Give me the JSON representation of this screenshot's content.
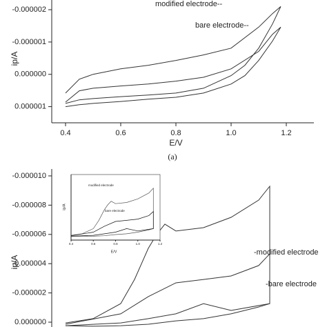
{
  "chart_data": [
    {
      "type": "line",
      "caption": "(a)",
      "xlabel": "E/V",
      "ylabel": "ip/A",
      "annotations": [
        "modified electrode--",
        "bare electrode--"
      ],
      "xlim": [
        0.35,
        1.3
      ],
      "xticks": [
        0.4,
        0.6,
        0.8,
        {
          "value": 1,
          "label": "1.0"
        },
        1.2
      ],
      "ylim": [
        1.5e-06,
        -2.3e-06
      ],
      "yticks": [
        -2e-06,
        -1e-06,
        {
          "value": 0,
          "label": "0.000000"
        },
        1e-06
      ],
      "series": [
        {
          "name": "modified electrode",
          "color": "#333333",
          "x": [
            0.4,
            0.45,
            0.5,
            0.6,
            0.7,
            0.8,
            0.9,
            1.0,
            1.05,
            1.1,
            1.15,
            1.18,
            1.15,
            1.1,
            1.0,
            0.9,
            0.8,
            0.7,
            0.6,
            0.5,
            0.45,
            0.4
          ],
          "values": [
            9e-07,
            7.9e-07,
            7.5e-07,
            6.9e-07,
            6.4e-07,
            5.8e-07,
            4.3e-07,
            4e-08,
            -2.8e-07,
            -8.1e-07,
            -1.56e-06,
            -2.1e-06,
            -1.88e-06,
            -1.46e-06,
            -8.1e-07,
            -6e-07,
            -4.3e-07,
            -2.8e-07,
            -1.7e-07,
            0,
            1.5e-07,
            5.8e-07
          ]
        },
        {
          "name": "bare electrode",
          "color": "#333333",
          "x": [
            0.4,
            0.45,
            0.5,
            0.6,
            0.7,
            0.8,
            0.9,
            1.0,
            1.05,
            1.1,
            1.15,
            1.18,
            1.15,
            1.1,
            1.0,
            0.9,
            0.8,
            0.7,
            0.6,
            0.5,
            0.45,
            0.4
          ],
          "values": [
            1e-06,
            9.4e-07,
            9e-07,
            8.4e-07,
            7.7e-07,
            7.1e-07,
            5.8e-07,
            3e-07,
            4e-08,
            -4.3e-07,
            -1.03e-06,
            -1.46e-06,
            -1.24e-06,
            -7.1e-07,
            -1.7e-07,
            9e-08,
            2.1e-07,
            3e-07,
            3.6e-07,
            4.3e-07,
            5.1e-07,
            8.6e-07
          ]
        }
      ]
    },
    {
      "type": "line",
      "ylabel": "ip/A",
      "annotations": [
        "-modified electrode",
        "-bare electrode"
      ],
      "xlim": [
        0.35,
        1.3
      ],
      "ylim": [
        3.3e-07,
        -1.047e-05
      ],
      "yticks": [
        {
          "value": -1e-05,
          "label": "-0.000010"
        },
        -8e-06,
        -6e-06,
        -4e-06,
        -2e-06,
        {
          "value": 0,
          "label": "0.000000"
        }
      ],
      "series": [
        {
          "name": "modified electrode",
          "color": "#333333",
          "x": [
            0.4,
            0.5,
            0.6,
            0.65,
            0.7,
            0.73,
            0.76,
            0.8,
            0.9,
            1.0,
            1.1,
            1.14,
            1.14,
            1.1,
            1.0,
            0.9,
            0.8,
            0.7,
            0.6,
            0.5,
            0.4
          ],
          "values": [
            5e-08,
            -2.4e-07,
            -1.27e-06,
            -2.92e-06,
            -5.05e-06,
            -5.99e-06,
            -6.7e-06,
            -6.23e-06,
            -6.46e-06,
            -7.17e-06,
            -8.35e-06,
            -9.29e-06,
            -1.27e-06,
            -1.04e-06,
            -5.7e-07,
            -2.4e-07,
            -9e-08,
            1.4e-07,
            2.4e-07,
            2.8e-07,
            2.4e-07
          ]
        },
        {
          "name": "bare electrode",
          "color": "#333333",
          "x": [
            0.4,
            0.6,
            0.7,
            0.8,
            0.9,
            1.0,
            1.1,
            1.14,
            1.14,
            1.0,
            0.9,
            0.8,
            0.7,
            0.6,
            0.4
          ],
          "values": [
            1.4e-07,
            -5.7e-07,
            -1.75e-06,
            -2.69e-06,
            -2.92e-06,
            -3.16e-06,
            -3.87e-06,
            -4.67e-06,
            -1.27e-06,
            -8e-07,
            -1.27e-06,
            -5.7e-07,
            -2.4e-07,
            5e-08,
            2.4e-07
          ]
        }
      ]
    },
    {
      "type": "line",
      "xlabel": "E/V",
      "ylabel": "ip/A",
      "annotations": [
        "modified electrode",
        "bare electrode"
      ],
      "xlim": [
        0.4,
        1.2
      ],
      "xticks": [
        0.4,
        0.6,
        0.8,
        {
          "value": 1,
          "label": "1.0"
        },
        1.2
      ],
      "ylim": [
        1e-06,
        -1.2e-05
      ],
      "series": [
        {
          "name": "modified electrode",
          "color": "#555555",
          "x": [
            0.4,
            0.5,
            0.6,
            0.65,
            0.7,
            0.73,
            0.76,
            0.8,
            0.9,
            1.0,
            1.1,
            1.14,
            1.14,
            1.1,
            1.0,
            0.9,
            0.8,
            0.7,
            0.6,
            0.5,
            0.4
          ],
          "values": [
            5e-08,
            -2.4e-07,
            -1.27e-06,
            -2.92e-06,
            -5.05e-06,
            -5.99e-06,
            -6.7e-06,
            -6.23e-06,
            -6.46e-06,
            -7.17e-06,
            -8.35e-06,
            -9.29e-06,
            -1.27e-06,
            -1.04e-06,
            -5.7e-07,
            -2.4e-07,
            -9e-08,
            1.4e-07,
            2.4e-07,
            2.8e-07,
            2.4e-07
          ]
        },
        {
          "name": "bare electrode",
          "color": "#111111",
          "x": [
            0.4,
            0.6,
            0.7,
            0.8,
            0.9,
            1.0,
            1.1,
            1.14,
            1.14,
            1.0,
            0.9,
            0.8,
            0.7,
            0.6,
            0.4
          ],
          "values": [
            1.4e-07,
            -5.7e-07,
            -1.75e-06,
            -2.69e-06,
            -2.92e-06,
            -3.16e-06,
            -3.87e-06,
            -4.67e-06,
            -1.27e-06,
            -8e-07,
            -1.27e-06,
            -5.7e-07,
            -2.4e-07,
            5e-08,
            2.4e-07
          ]
        }
      ]
    }
  ]
}
